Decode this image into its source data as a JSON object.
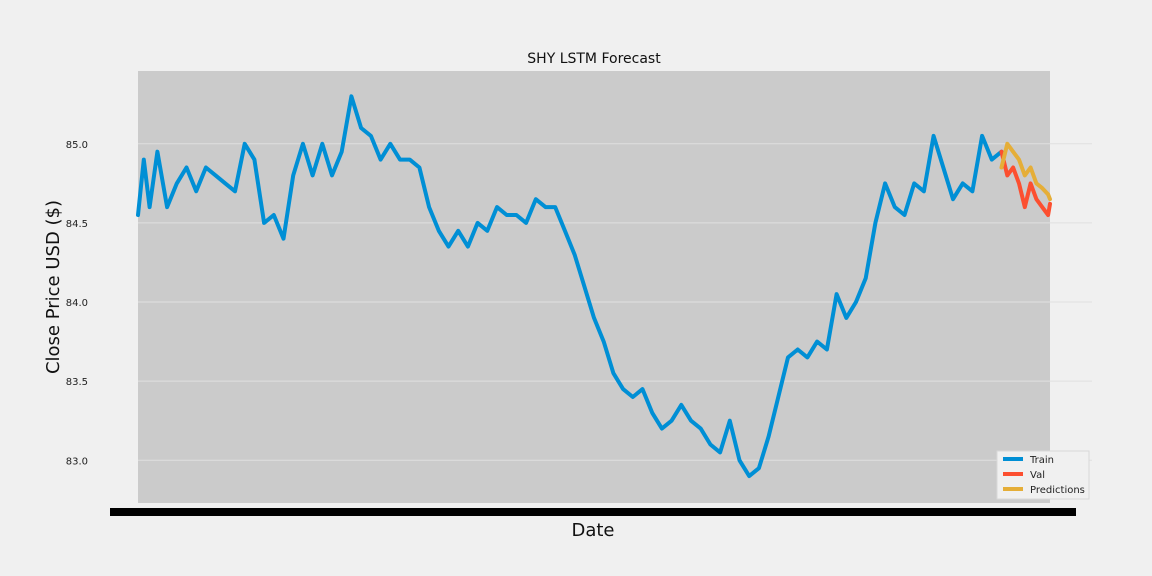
{
  "chart_data": {
    "type": "line",
    "title": "SHY LSTM Forecast",
    "xlabel": "Date",
    "ylabel": "Close Price USD ($)",
    "ylim": [
      82.73,
      85.46
    ],
    "yticks": [
      83.0,
      83.5,
      84.0,
      84.5,
      85.0
    ],
    "ytick_labels": [
      "83.0",
      "83.5",
      "84.0",
      "84.5",
      "85.0"
    ],
    "x_index_range": [
      0,
      470
    ],
    "x_tick_note": "dense overlapping date tick labels (illegible)",
    "grid": true,
    "legend_position": "lower-right",
    "series": [
      {
        "name": "Train",
        "color": "#008fd5",
        "x": [
          0,
          3,
          6,
          10,
          15,
          20,
          25,
          30,
          35,
          40,
          45,
          50,
          55,
          60,
          65,
          70,
          75,
          80,
          85,
          90,
          95,
          100,
          105,
          110,
          115,
          120,
          125,
          130,
          135,
          140,
          145,
          150,
          155,
          160,
          165,
          170,
          175,
          180,
          185,
          190,
          195,
          200,
          205,
          210,
          215,
          220,
          225,
          230,
          235,
          240,
          245,
          250,
          255,
          260,
          265,
          270,
          275,
          280,
          285,
          290,
          295,
          300,
          305,
          310,
          315,
          320,
          325,
          330,
          335,
          340,
          345,
          350,
          355,
          360,
          365,
          370,
          375,
          380,
          385,
          390,
          395,
          400,
          405,
          410,
          415,
          420,
          425,
          430,
          435,
          440,
          445
        ],
        "values": [
          84.55,
          84.9,
          84.6,
          84.95,
          84.6,
          84.75,
          84.85,
          84.7,
          84.85,
          84.8,
          84.75,
          84.7,
          85.0,
          84.9,
          84.5,
          84.55,
          84.4,
          84.8,
          85.0,
          84.8,
          85.0,
          84.8,
          84.95,
          85.3,
          85.1,
          85.05,
          84.9,
          85.0,
          84.9,
          84.9,
          84.85,
          84.6,
          84.45,
          84.35,
          84.45,
          84.35,
          84.5,
          84.45,
          84.6,
          84.55,
          84.55,
          84.5,
          84.65,
          84.6,
          84.6,
          84.45,
          84.3,
          84.1,
          83.9,
          83.75,
          83.55,
          83.45,
          83.4,
          83.45,
          83.3,
          83.2,
          83.25,
          83.35,
          83.25,
          83.2,
          83.1,
          83.05,
          83.25,
          83.0,
          82.9,
          82.95,
          83.15,
          83.4,
          83.65,
          83.7,
          83.65,
          83.75,
          83.7,
          84.05,
          83.9,
          84.0,
          84.15,
          84.5,
          84.75,
          84.6,
          84.55,
          84.75,
          84.7,
          85.05,
          84.85,
          84.65,
          84.75,
          84.7,
          85.05,
          84.9,
          84.95
        ]
      },
      {
        "name": "Val",
        "color": "#fc4f30",
        "x": [
          445,
          448,
          451,
          454,
          457,
          460,
          463,
          466,
          469,
          470
        ],
        "values": [
          84.95,
          84.8,
          84.85,
          84.75,
          84.6,
          84.75,
          84.65,
          84.6,
          84.55,
          84.62
        ]
      },
      {
        "name": "Predictions",
        "color": "#e5ae38",
        "x": [
          445,
          448,
          451,
          454,
          457,
          460,
          463,
          466,
          469,
          470
        ],
        "values": [
          84.85,
          85.0,
          84.95,
          84.9,
          84.8,
          84.85,
          84.75,
          84.72,
          84.68,
          84.65
        ]
      }
    ]
  }
}
